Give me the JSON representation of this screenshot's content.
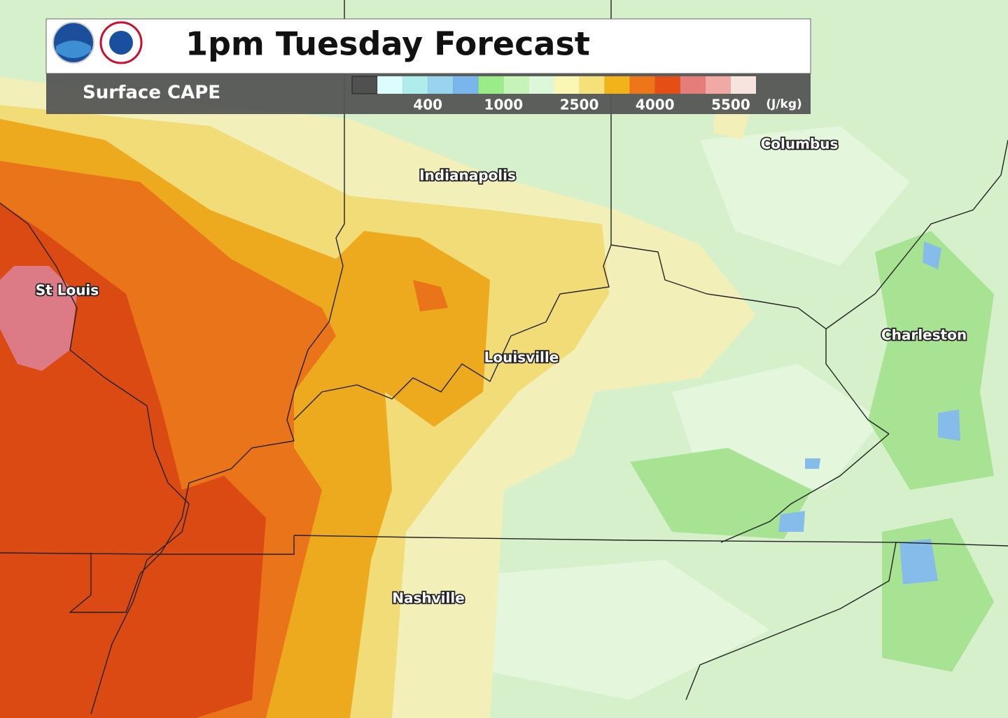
{
  "header": {
    "title": "1pm Tuesday Forecast",
    "subtitle": "Surface CAPE"
  },
  "legend": {
    "colors": [
      "#505050",
      "#dcfdfc",
      "#b0eceb",
      "#98d4ee",
      "#7ab6ec",
      "#99ec88",
      "#c6f4b8",
      "#ddf8d8",
      "#faf7b4",
      "#f5e07a",
      "#f2b21a",
      "#ee7518",
      "#e54e14",
      "#e57e7a",
      "#f1a9a5",
      "#f7e4de"
    ],
    "labels": [
      "400",
      "1000",
      "2500",
      "4000",
      "5500"
    ],
    "units": "(J/kg)"
  },
  "cities": [
    "Indianapolis",
    "Columbus",
    "St Louis",
    "Louisville",
    "Charleston",
    "Nashville"
  ]
}
